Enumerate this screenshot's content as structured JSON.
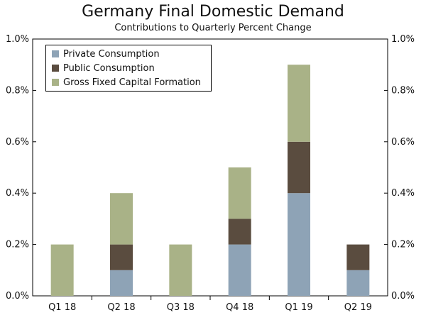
{
  "chart_data": {
    "type": "bar",
    "stacked": true,
    "title": "Germany Final Domestic Demand",
    "subtitle": "Contributions to Quarterly Percent Change",
    "categories": [
      "Q1 18",
      "Q2 18",
      "Q3 18",
      "Q4 18",
      "Q1 19",
      "Q2 19"
    ],
    "series": [
      {
        "name": "Private Consumption",
        "color": "#8ea3b6",
        "values": [
          0.0,
          0.1,
          0.0,
          0.2,
          0.4,
          0.1
        ]
      },
      {
        "name": "Public Consumption",
        "color": "#5a4c3f",
        "values": [
          0.0,
          0.1,
          0.0,
          0.1,
          0.2,
          0.1
        ]
      },
      {
        "name": "Gross Fixed Capital Formation",
        "color": "#a9b287",
        "values": [
          0.2,
          0.2,
          0.2,
          0.2,
          0.3,
          0.0
        ]
      }
    ],
    "ylim": [
      0,
      1.0
    ],
    "yticks": [
      "0.0%",
      "0.2%",
      "0.4%",
      "0.6%",
      "0.8%",
      "1.0%"
    ],
    "ytick_values": [
      0,
      0.2,
      0.4,
      0.6,
      0.8,
      1.0
    ],
    "legend_position": "top-left",
    "grid": false
  }
}
